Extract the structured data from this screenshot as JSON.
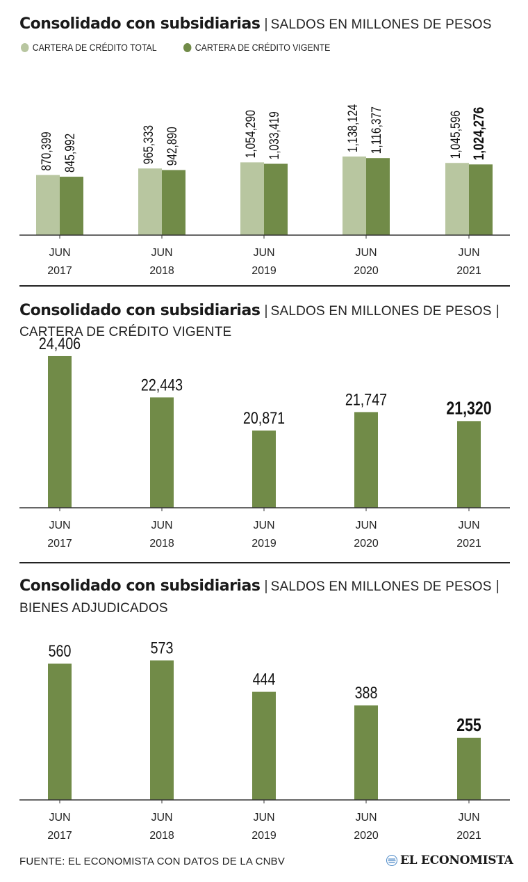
{
  "colors": {
    "total": "#b8c6a0",
    "vigente": "#718b48",
    "axis": "#333333"
  },
  "chart_data": [
    {
      "type": "bar",
      "title": "Consolidado con subsidiarias",
      "subtitle": "SALDOS EN MILLONES DE PESOS",
      "subtitle2": "",
      "categories": [
        "JUN",
        "JUN",
        "JUN",
        "JUN",
        "JUN"
      ],
      "categories_year": [
        "2017",
        "2018",
        "2019",
        "2020",
        "2021"
      ],
      "series": [
        {
          "name": "CARTERA DE CRÉDITO TOTAL",
          "values": [
            870399,
            965333,
            1054290,
            1138124,
            1045596
          ],
          "labels": [
            "870,399",
            "965,333",
            "1,054,290",
            "1,138,124",
            "1,045,596"
          ]
        },
        {
          "name": "CARTERA DE CRÉDITO VIGENTE",
          "values": [
            845992,
            942890,
            1033419,
            1116377,
            1024276
          ],
          "labels": [
            "845,992",
            "942,890",
            "1,033,419",
            "1,116,377",
            "1,024,276"
          ]
        }
      ],
      "ylim": [
        0,
        2600000
      ],
      "legend": "top-left"
    },
    {
      "type": "bar",
      "title": "Consolidado con subsidiarias",
      "subtitle": "SALDOS EN MILLONES DE PESOS",
      "subtitle2": "CARTERA DE CRÉDITO VIGENTE",
      "categories": [
        "JUN",
        "JUN",
        "JUN",
        "JUN",
        "JUN"
      ],
      "categories_year": [
        "2017",
        "2018",
        "2019",
        "2020",
        "2021"
      ],
      "values": [
        24406,
        22443,
        20871,
        21747,
        21320
      ],
      "labels": [
        "24,406",
        "22,443",
        "20,871",
        "21,747",
        "21,320"
      ],
      "ylim": [
        17200,
        25000
      ]
    },
    {
      "type": "bar",
      "title": "Consolidado con subsidiarias",
      "subtitle": "SALDOS EN MILLONES DE PESOS",
      "subtitle2": "BIENES ADJUDICADOS",
      "categories": [
        "JUN",
        "JUN",
        "JUN",
        "JUN",
        "JUN"
      ],
      "categories_year": [
        "2017",
        "2018",
        "2019",
        "2020",
        "2021"
      ],
      "values": [
        560,
        573,
        444,
        388,
        255
      ],
      "labels": [
        "560",
        "573",
        "444",
        "388",
        "255"
      ],
      "ylim": [
        0,
        640
      ]
    }
  ],
  "footer": {
    "source": "FUENTE: EL ECONOMISTA CON DATOS DE LA CNBV",
    "brand": "EL ECONOMISTA",
    "brand_icon": "el-economista-logo-icon"
  }
}
